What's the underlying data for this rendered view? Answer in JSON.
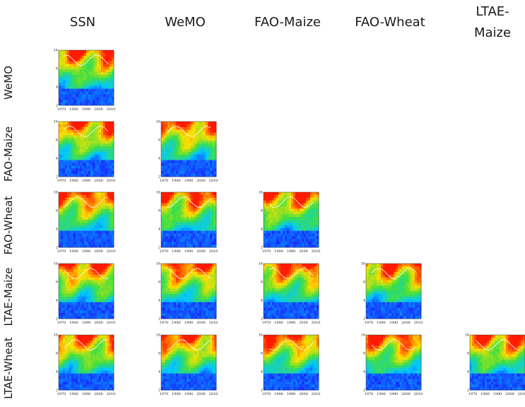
{
  "columns": [
    "SSN",
    "WeMO",
    "FAO-Maize",
    "FAO-Wheat",
    "LTAE-Maize"
  ],
  "rows": [
    "WeMO",
    "FAO-Maize",
    "FAO-Wheat",
    "LTAE-Maize",
    "LTAE-Wheat"
  ],
  "colors": {
    "low": "#1a1aff",
    "mid_low": "#00c8ff",
    "mid": "#40e040",
    "mid_high": "#ffe000",
    "high": "#ff1a00",
    "contour": "#ffffff"
  },
  "chart_data": {
    "type": "heatmap",
    "description_kind": "wavelet coherence matrix (lower triangle)",
    "x_ticks": [
      "1970",
      "1980",
      "1990",
      "2000",
      "2010"
    ],
    "y_ticks": [
      "2",
      "4",
      "8",
      "16"
    ],
    "panels": [
      {
        "row": "WeMO",
        "col": "SSN"
      },
      {
        "row": "FAO-Maize",
        "col": "SSN"
      },
      {
        "row": "FAO-Maize",
        "col": "WeMO"
      },
      {
        "row": "FAO-Wheat",
        "col": "SSN"
      },
      {
        "row": "FAO-Wheat",
        "col": "WeMO"
      },
      {
        "row": "FAO-Wheat",
        "col": "FAO-Maize"
      },
      {
        "row": "LTAE-Maize",
        "col": "SSN"
      },
      {
        "row": "LTAE-Maize",
        "col": "WeMO"
      },
      {
        "row": "LTAE-Maize",
        "col": "FAO-Maize"
      },
      {
        "row": "LTAE-Maize",
        "col": "FAO-Wheat"
      },
      {
        "row": "LTAE-Wheat",
        "col": "SSN"
      },
      {
        "row": "LTAE-Wheat",
        "col": "WeMO"
      },
      {
        "row": "LTAE-Wheat",
        "col": "FAO-Maize"
      },
      {
        "row": "LTAE-Wheat",
        "col": "FAO-Wheat"
      },
      {
        "row": "LTAE-Wheat",
        "col": "LTAE-Maize"
      }
    ]
  }
}
